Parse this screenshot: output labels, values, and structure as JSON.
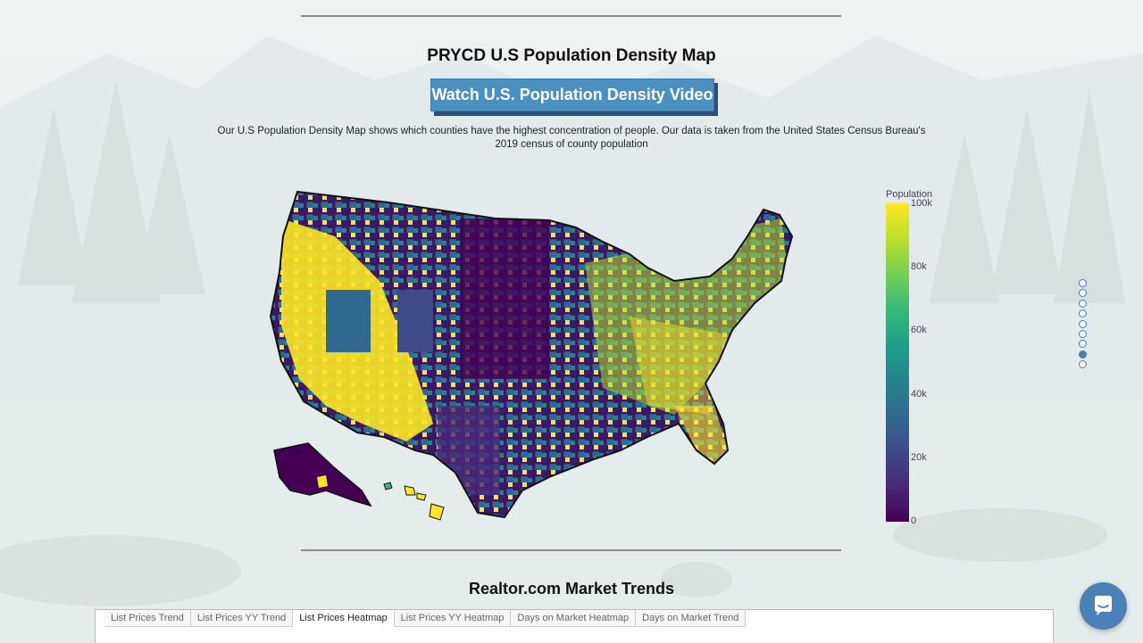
{
  "page": {
    "title": "PRYCD U.S Population Density Map",
    "video_button": "Watch U.S. Population Density Video",
    "description_line1": "Our U.S Population Density Map shows which counties have the highest concentration of people. Our data is taken from the United States Census Bureau's",
    "description_line2": "2019 census of county population"
  },
  "legend": {
    "title": "Population",
    "ticks": [
      "100k",
      "80k",
      "60k",
      "40k",
      "20k",
      "0"
    ]
  },
  "pager": {
    "count": 9,
    "active_index": 7
  },
  "trends": {
    "title": "Realtor.com Market Trends",
    "tabs": [
      {
        "label": "List Prices Trend",
        "active": false
      },
      {
        "label": "List Prices YY Trend",
        "active": false
      },
      {
        "label": "List Prices Heatmap",
        "active": true
      },
      {
        "label": "List Prices YY Heatmap",
        "active": false
      },
      {
        "label": "Days on Market Heatmap",
        "active": false
      },
      {
        "label": "Days on Market Trend",
        "active": false
      }
    ]
  },
  "colors": {
    "accent": "#4a90c0",
    "viridis": [
      "#440154",
      "#482878",
      "#3e4a89",
      "#31688e",
      "#26828e",
      "#1f9e89",
      "#35b779",
      "#6ece58",
      "#b5de2b",
      "#fde725"
    ]
  },
  "icons": {
    "chat": "chat-bubble-icon"
  }
}
